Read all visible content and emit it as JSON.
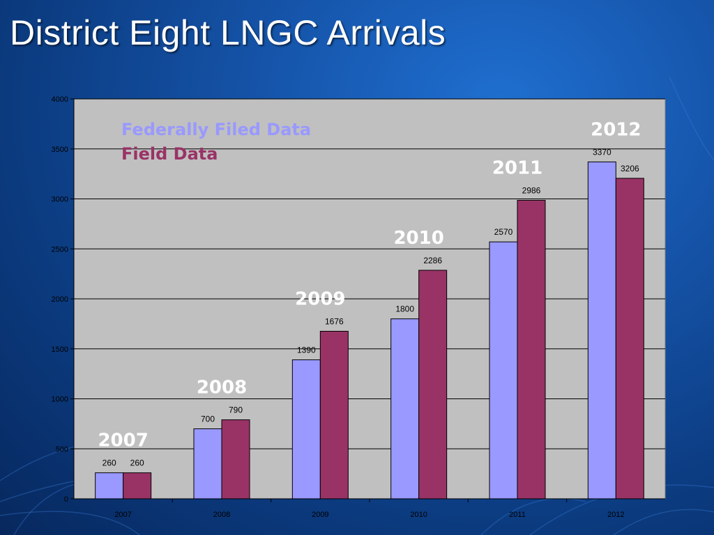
{
  "slide": {
    "title": "District Eight LNGC Arrivals"
  },
  "colors": {
    "federal": "#9999ff",
    "field": "#993366",
    "plot_bg": "#c0c0c0",
    "year_label": "#ffffff"
  },
  "chart_data": {
    "type": "bar",
    "title": "",
    "xlabel": "",
    "ylabel": "",
    "categories": [
      "2007",
      "2008",
      "2009",
      "2010",
      "2011",
      "2012"
    ],
    "series": [
      {
        "name": "Federally Filed Data",
        "values": [
          260,
          700,
          1390,
          1800,
          2570,
          3370
        ]
      },
      {
        "name": "Field Data",
        "values": [
          260,
          790,
          1676,
          2286,
          2986,
          3206
        ]
      }
    ],
    "ylim": [
      0,
      4000
    ],
    "yticks": [
      0,
      500,
      1000,
      1500,
      2000,
      2500,
      3000,
      3500,
      4000
    ],
    "grid": true,
    "legend_position": "top-left",
    "annotations": [
      "2007",
      "2008",
      "2009",
      "2010",
      "2011",
      "2012"
    ]
  }
}
